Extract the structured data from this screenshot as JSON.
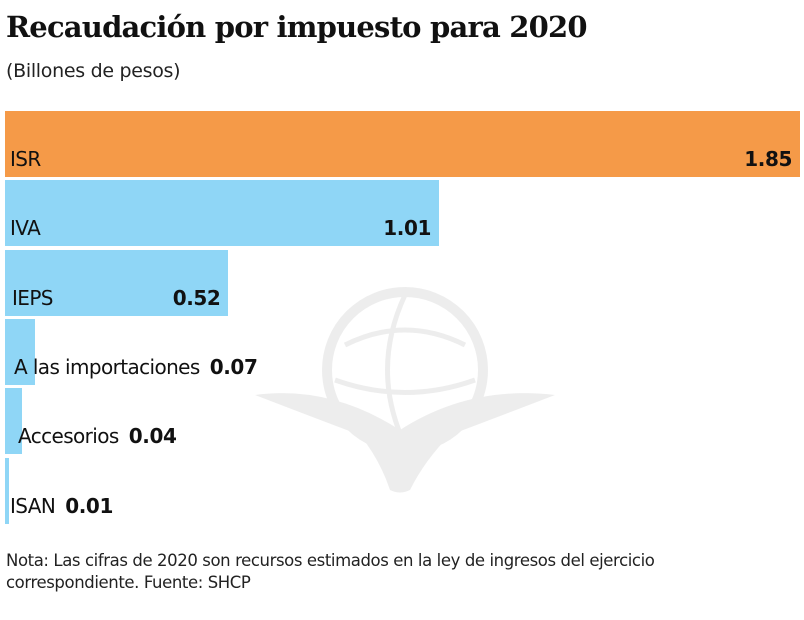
{
  "chart_data": {
    "type": "bar",
    "orientation": "horizontal",
    "title": "Recaudación por impuesto para 2020",
    "subtitle": "(Billones de pesos)",
    "xlabel": "",
    "ylabel": "",
    "xlim": [
      0,
      1.85
    ],
    "grid": false,
    "legend": "none",
    "categories": [
      "ISR",
      "IVA",
      "IEPS",
      "A las importaciones",
      "Accesorios",
      "ISAN"
    ],
    "values": [
      1.85,
      1.01,
      0.52,
      0.07,
      0.04,
      0.01
    ],
    "value_labels": [
      "1.85",
      "1.01",
      "0.52",
      "0.07",
      "0.04",
      "0.01"
    ],
    "colors": [
      "#f59a48",
      "#8fd6f6",
      "#8fd6f6",
      "#8fd6f6",
      "#8fd6f6",
      "#8fd6f6"
    ],
    "note": "Nota: Las cifras de 2020 son recursos estimados en la ley de ingresos del ejercicio correspondiente. Fuente: SHCP"
  }
}
